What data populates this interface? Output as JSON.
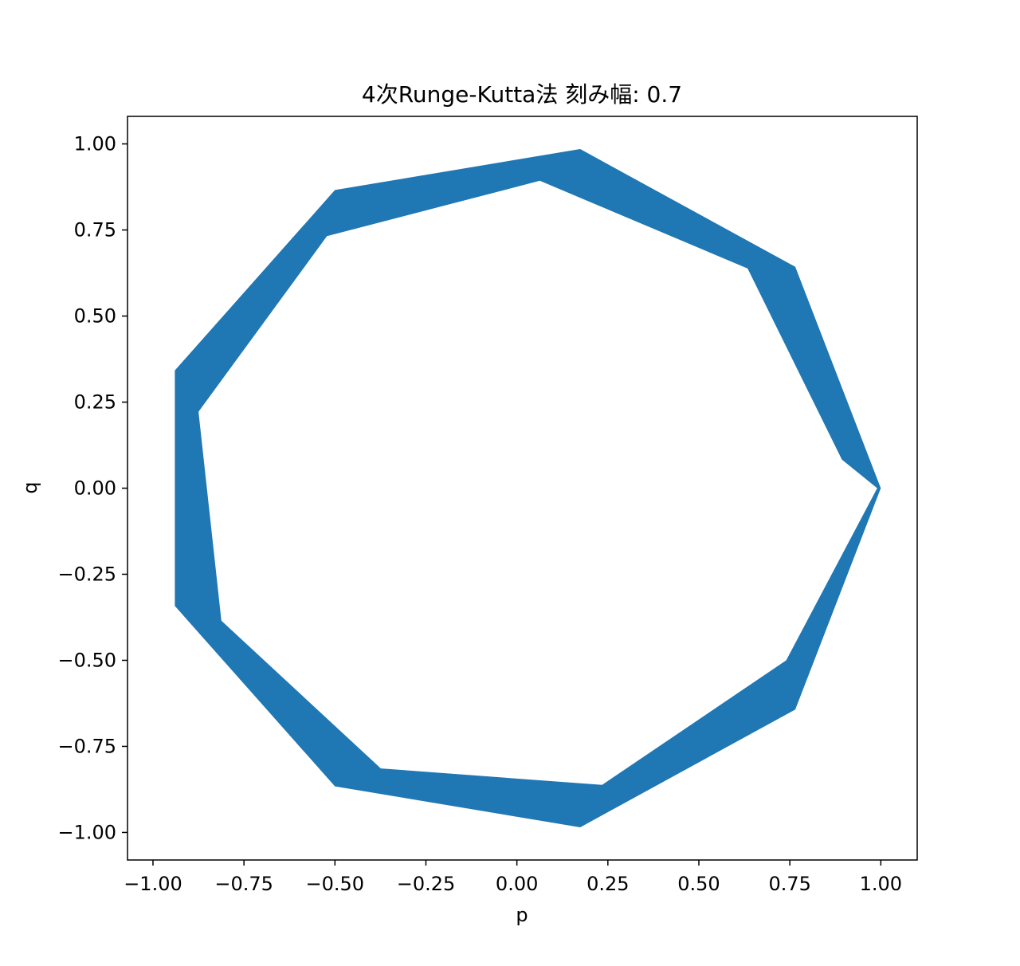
{
  "chart_data": {
    "type": "line",
    "title": "4次Runge-Kutta法 刻み幅: 0.7",
    "xlabel": "p",
    "ylabel": "q",
    "xlim": [
      -1.07,
      1.1
    ],
    "ylim": [
      -1.08,
      1.08
    ],
    "xticks": [
      -1.0,
      -0.75,
      -0.5,
      -0.25,
      0.0,
      0.25,
      0.5,
      0.75,
      1.0
    ],
    "xtick_labels": [
      "−1.00",
      "−0.75",
      "−0.50",
      "−0.25",
      "0.00",
      "0.25",
      "0.50",
      "0.75",
      "1.00"
    ],
    "yticks": [
      1.0,
      0.75,
      0.5,
      0.25,
      0.0,
      -0.25,
      -0.5,
      -0.75,
      -1.0
    ],
    "ytick_labels": [
      "1.00",
      "0.75",
      "0.50",
      "0.25",
      "0.00",
      "−0.25",
      "−0.50",
      "−0.75",
      "−1.00"
    ],
    "grid": false,
    "line_color": "#1f77b4",
    "outer_vertices": [
      [
        1.0,
        0.0
      ],
      [
        0.765,
        0.643
      ],
      [
        0.174,
        0.985
      ],
      [
        -0.5,
        0.866
      ],
      [
        -0.94,
        0.342
      ],
      [
        -0.94,
        -0.342
      ],
      [
        -0.5,
        -0.866
      ],
      [
        0.174,
        -0.985
      ],
      [
        0.765,
        -0.643
      ],
      [
        1.0,
        0.0
      ]
    ],
    "inner_vertices": [
      [
        0.99,
        0.0
      ],
      [
        0.893,
        0.083
      ],
      [
        0.634,
        0.638
      ],
      [
        0.063,
        0.893
      ],
      [
        -0.522,
        0.732
      ],
      [
        -0.875,
        0.222
      ],
      [
        -0.812,
        -0.385
      ],
      [
        -0.374,
        -0.814
      ],
      [
        0.234,
        -0.862
      ],
      [
        0.74,
        -0.5
      ],
      [
        0.99,
        0.0
      ]
    ]
  }
}
